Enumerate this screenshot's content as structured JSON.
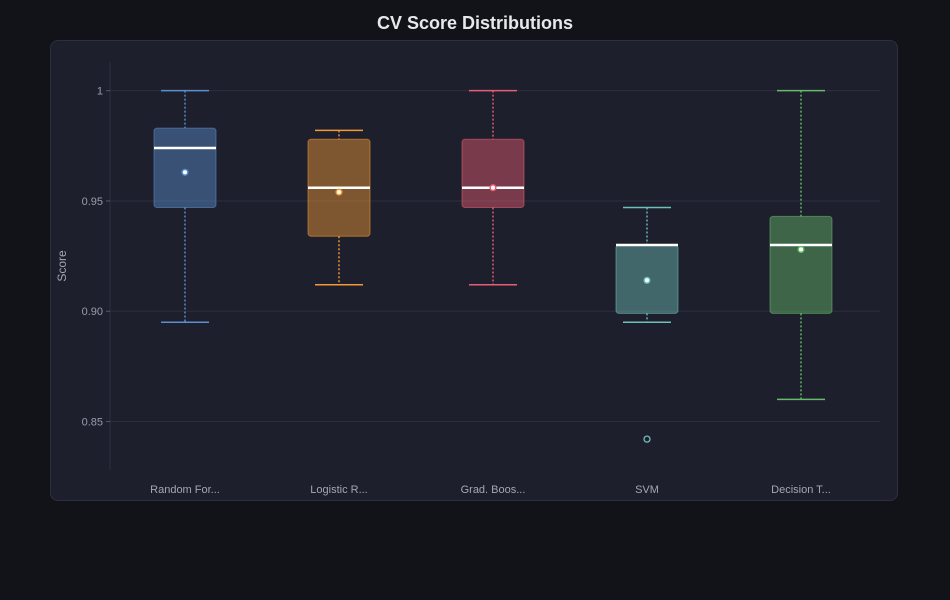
{
  "chart_data": {
    "type": "box",
    "title": "CV Score Distributions",
    "xlabel": "",
    "ylabel": "Score",
    "ylim": [
      0.828,
      1.013
    ],
    "yticks": [
      0.85,
      0.9,
      0.95,
      1
    ],
    "ytick_labels": [
      "0.85",
      "0.90",
      "0.95",
      "1"
    ],
    "grid": true,
    "categories": [
      "Random For...",
      "Logistic R...",
      "Grad. Boos...",
      "SVM",
      "Decision T..."
    ],
    "series": [
      {
        "whisker_low": 0.895,
        "q1": 0.947,
        "median": 0.974,
        "q3": 0.983,
        "whisker_high": 1.0,
        "mean": 0.963,
        "outliers": [],
        "color": "#5b8fcf"
      },
      {
        "whisker_low": 0.912,
        "q1": 0.934,
        "median": 0.956,
        "q3": 0.978,
        "whisker_high": 0.982,
        "mean": 0.954,
        "outliers": [],
        "color": "#f39a34"
      },
      {
        "whisker_low": 0.912,
        "q1": 0.947,
        "median": 0.956,
        "q3": 0.978,
        "whisker_high": 1.0,
        "mean": 0.956,
        "outliers": [],
        "color": "#e85d73"
      },
      {
        "whisker_low": 0.895,
        "q1": 0.899,
        "median": 0.93,
        "q3": 0.93,
        "whisker_high": 0.947,
        "mean": 0.914,
        "outliers": [
          0.842
        ],
        "color": "#6fbfb8"
      },
      {
        "whisker_low": 0.86,
        "q1": 0.899,
        "median": 0.93,
        "q3": 0.943,
        "whisker_high": 1.0,
        "mean": 0.928,
        "outliers": [],
        "color": "#66bb6a"
      }
    ]
  },
  "colors": {
    "page_bg": "#121318",
    "panel_bg": "#1e1f2d",
    "grid": "#2c2e3e",
    "median": "#ffffff"
  }
}
